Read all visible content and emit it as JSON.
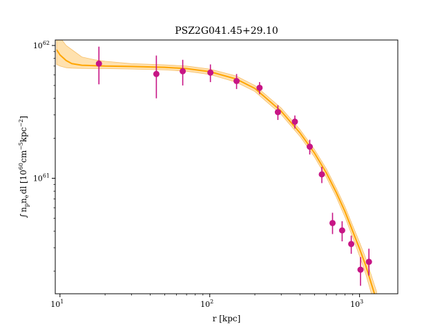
{
  "chart_data": {
    "type": "scatter",
    "title": "PSZ2G041.45+29.10",
    "xlabel": "r [kpc]",
    "ylabel": "∫ n_p n_e dl [10^60 cm^-5 kpc^-2]",
    "ylabel_parts": {
      "integral": "∫",
      "n": "n",
      "p": "p",
      "e": "e",
      "dl": "dl [10",
      "exp60": "60",
      "cm": "cm",
      "exp5": "−5",
      "kpc": "kpc",
      "exp2": "−2",
      "close": "]"
    },
    "xscale": "log",
    "yscale": "log",
    "xlim": [
      9.3,
      1800
    ],
    "ylim": [
      1.35e+60,
      1.1e+62
    ],
    "x_ticks": [
      {
        "value": 10,
        "base": "10",
        "exp": "1"
      },
      {
        "value": 100,
        "base": "10",
        "exp": "2"
      },
      {
        "value": 1000,
        "base": "10",
        "exp": "3"
      }
    ],
    "y_ticks": [
      {
        "value": 1e+61,
        "base": "10",
        "exp": "61"
      },
      {
        "value": 1e+62,
        "base": "10",
        "exp": "62"
      }
    ],
    "points": {
      "name": "data",
      "color": "#C71585",
      "x": [
        18.2,
        44,
        66,
        101,
        151,
        215,
        285,
        370,
        465,
        560,
        660,
        765,
        880,
        1015,
        1155
      ],
      "y": [
        7.3e+61,
        6.1e+61,
        6.4e+61,
        6.25e+61,
        5.4e+61,
        4.8e+61,
        3.15e+61,
        2.67e+61,
        1.73e+61,
        1.07e+61,
        4.6e+60,
        4.05e+60,
        3.2e+60,
        2.05e+60,
        2.35e+60
      ],
      "yerr_low": [
        2.2e+61,
        2.1e+61,
        1.4e+61,
        9.5e+60,
        7e+60,
        5e+60,
        4e+60,
        3e+60,
        2.2e+60,
        1.5e+60,
        8e+59,
        7e+59,
        5e+59,
        5e+59,
        5e+59
      ],
      "yerr_high": [
        2.5e+61,
        2.3e+61,
        1.4e+61,
        9.5e+60,
        7e+60,
        5e+60,
        4e+60,
        3e+60,
        2.2e+60,
        1.5e+60,
        9e+59,
        7e+59,
        5e+59,
        5e+59,
        6e+59
      ]
    },
    "model": {
      "name": "model",
      "color": "#FFA500",
      "band_color": "#FFDCA0",
      "x": [
        9.5,
        10,
        11,
        12,
        14,
        17,
        20,
        30,
        50,
        70,
        100,
        150,
        200,
        300,
        400,
        500,
        600,
        700,
        800,
        900,
        1000,
        1100,
        1200,
        1300
      ],
      "y": [
        9.3e+61,
        8.5e+61,
        7.7e+61,
        7.3e+61,
        7.1e+61,
        7.05e+61,
        7e+61,
        6.95e+61,
        6.85e+61,
        6.7e+61,
        6.35e+61,
        5.6e+61,
        4.75e+61,
        3.2e+61,
        2.2e+61,
        1.55e+61,
        1.1e+61,
        7.8e+60,
        5.6e+60,
        4e+60,
        2.95e+60,
        2.2e+60,
        1.6e+60,
        1.2e+60
      ],
      "y_low": [
        7.2e+61,
        7e+61,
        6.8e+61,
        6.75e+61,
        6.72e+61,
        6.7e+61,
        6.7e+61,
        6.65e+61,
        6.55e+61,
        6.4e+61,
        6.05e+61,
        5.3e+61,
        4.5e+61,
        3.02e+61,
        2.07e+61,
        1.45e+61,
        1.02e+61,
        7.2e+60,
        5.1e+60,
        3.6e+60,
        2.6e+60,
        1.9e+60,
        1.35e+60,
        1e+60
      ],
      "y_high": [
        1.3e+62,
        1.15e+62,
        1e+62,
        9.3e+61,
        8.2e+61,
        7.8e+61,
        7.6e+61,
        7.3e+61,
        7.15e+61,
        7e+61,
        6.65e+61,
        5.9e+61,
        5e+61,
        3.38e+61,
        2.33e+61,
        1.65e+61,
        1.18e+61,
        8.4e+60,
        6.1e+60,
        4.4e+60,
        3.3e+60,
        2.5e+60,
        1.85e+60,
        1.4e+60
      ]
    },
    "grid": false,
    "legend": "none"
  }
}
